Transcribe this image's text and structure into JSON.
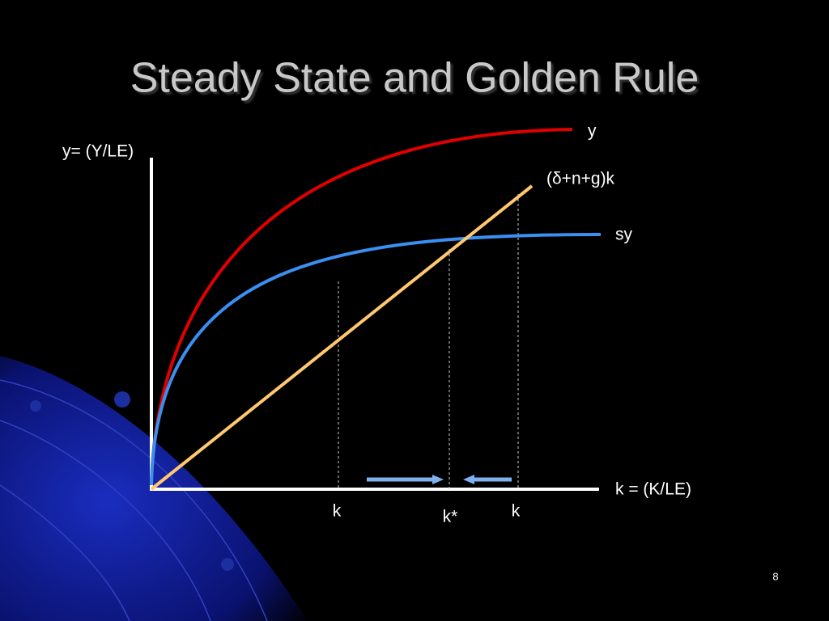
{
  "slide": {
    "title": "Steady State and Golden Rule",
    "page_number": "8"
  },
  "diagram": {
    "y_axis_label": "y= (Y/LE)",
    "x_axis_label": "k = (K/LE)",
    "curves": [
      {
        "label": "y"
      },
      {
        "label": "(δ+n+g)k"
      },
      {
        "label": "sy"
      }
    ],
    "k_marks": [
      {
        "label": "k"
      },
      {
        "label": "k*"
      },
      {
        "label": "k"
      }
    ]
  }
}
